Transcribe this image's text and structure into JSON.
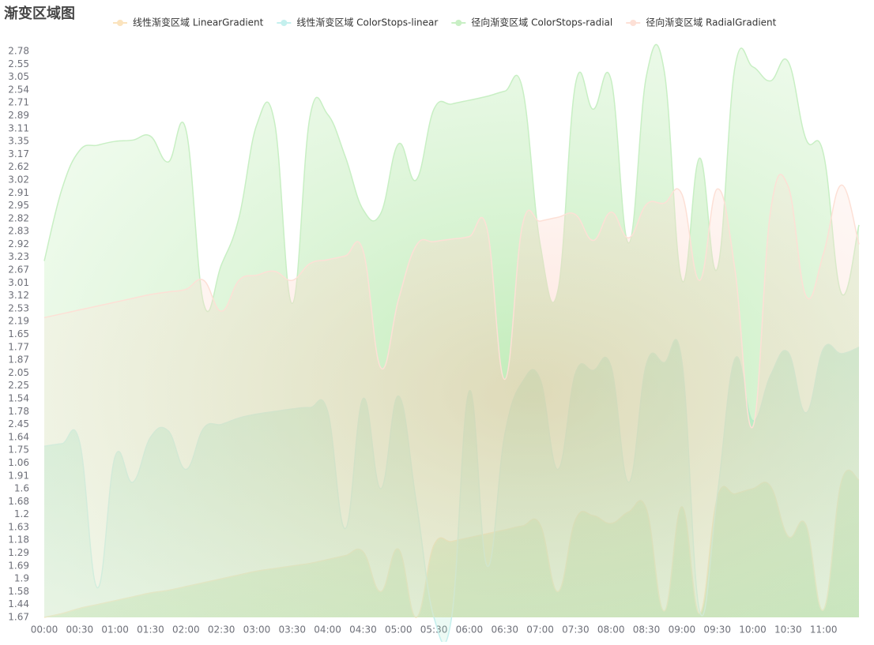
{
  "chart_data": {
    "type": "area",
    "title": "渐变区域图",
    "categories": [
      "00:00",
      null,
      "00:30",
      null,
      "01:00",
      null,
      "01:30",
      null,
      "02:00",
      null,
      "02:30",
      null,
      "03:00",
      null,
      "03:30",
      null,
      "04:00",
      null,
      "04:30",
      null,
      "05:00",
      null,
      "05:30",
      null,
      "06:00",
      null,
      "06:30",
      null,
      "07:00",
      null,
      "07:30",
      null,
      "08:00",
      null,
      "08:30",
      null,
      "09:00",
      null,
      "09:30",
      null,
      "10:00",
      null,
      "10:30",
      null,
      "11:00",
      null,
      null
    ],
    "ycategories": [
      1.67,
      1.44,
      1.58,
      1.9,
      1.69,
      1.29,
      1.18,
      1.63,
      1.2,
      1.68,
      1.6,
      1.91,
      1.06,
      1.75,
      1.64,
      2.45,
      1.78,
      1.54,
      2.25,
      2.05,
      1.87,
      1.77,
      1.65,
      2.19,
      2.53,
      3.12,
      3.01,
      2.67,
      3.23,
      2.92,
      2.83,
      2.82,
      2.95,
      2.91,
      3.02,
      2.62,
      3.17,
      3.35,
      3.11,
      2.89,
      2.71,
      2.54,
      3.05,
      2.55,
      2.78
    ],
    "series": [
      {
        "name": "线性渐变区域 LinearGradient",
        "color": "#fbe3bd",
        "values": [
          0,
          0.3,
          0.7,
          1.0,
          1.3,
          1.6,
          1.9,
          2.1,
          2.4,
          2.7,
          3.0,
          3.3,
          3.6,
          3.8,
          4.0,
          4.2,
          4.5,
          4.8,
          5.1,
          2.0,
          5.3,
          0,
          5.6,
          5.9,
          6.2,
          6.5,
          6.8,
          7.1,
          7.2,
          2.0,
          7.6,
          7.9,
          7.3,
          8.2,
          8.4,
          0.5,
          8.6,
          0.3,
          9.3,
          9.6,
          10.0,
          10.2,
          6.3,
          7.2,
          0.6,
          10.5,
          10.7
        ]
      },
      {
        "name": "线性渐变区域 ColorStops-linear",
        "color": "#c4f0ee",
        "values": [
          13.3,
          13.5,
          13.6,
          2.3,
          12.5,
          10.5,
          14.0,
          14.5,
          11.5,
          14.7,
          15.0,
          15.5,
          15.8,
          16.0,
          16.2,
          16.3,
          16.0,
          6.9,
          17.0,
          10.0,
          17.2,
          9.0,
          0,
          0,
          17.6,
          4.0,
          14.2,
          18.3,
          18.5,
          11.5,
          19.0,
          19.2,
          19.5,
          10.5,
          19.7,
          19.8,
          19.9,
          0.5,
          9.5,
          20.1,
          15.3,
          18.8,
          20.6,
          15.9,
          20.9,
          20.5,
          21.0
        ]
      },
      {
        "name": "径向渐变区域 ColorStops-radial",
        "color": "#c8efc4",
        "values": [
          27.7,
          33.3,
          36.3,
          36.7,
          37.0,
          37.1,
          37.4,
          35.4,
          37.9,
          24.4,
          27.4,
          31.1,
          38.3,
          38.5,
          24.4,
          38.9,
          39.1,
          35.8,
          31.7,
          31.4,
          36.8,
          34.0,
          39.5,
          39.9,
          40.2,
          40.5,
          40.9,
          41.1,
          29.0,
          25.4,
          41.5,
          39.5,
          41.8,
          29.1,
          42.1,
          42.5,
          26.2,
          35.7,
          27.1,
          42.8,
          42.8,
          41.7,
          43.2,
          37.2,
          36.0,
          25.2,
          30.5
        ]
      },
      {
        "name": "径向渐变区域 RadialGradient",
        "color": "#fde0d6",
        "values": [
          23.3,
          23.6,
          23.9,
          24.2,
          24.5,
          24.8,
          25.1,
          25.3,
          25.5,
          26.2,
          23.8,
          26.2,
          26.6,
          26.9,
          26.2,
          27.5,
          27.8,
          28.1,
          28.5,
          19.4,
          24.7,
          28.9,
          29.2,
          29.4,
          29.6,
          30.2,
          18.5,
          30.5,
          30.8,
          31.1,
          31.3,
          29.3,
          31.5,
          29.5,
          32.1,
          32.2,
          32.9,
          26.2,
          33.3,
          27.0,
          14.8,
          31.5,
          33.5,
          25.0,
          28.3,
          33.6,
          29.0
        ]
      }
    ]
  }
}
